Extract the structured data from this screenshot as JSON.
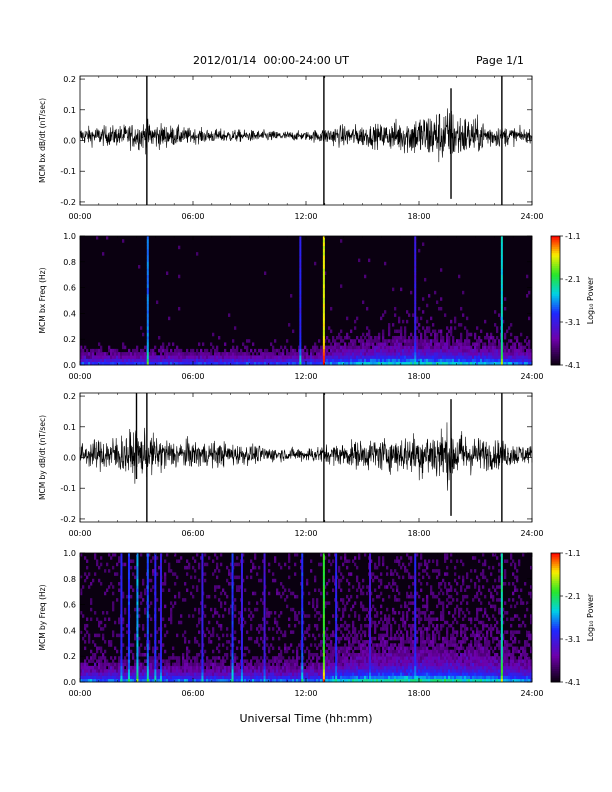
{
  "header": {
    "date_range": "2012/01/14  00:00-24:00 UT",
    "page": "Page 1/1"
  },
  "x_axis_label": "Universal Time (hh:mm)",
  "colors": {
    "trace": "#000000",
    "background": "#ffffff",
    "spectrogram_bg": "#0a0010"
  },
  "chart_data": [
    {
      "type": "line",
      "ylabel": "MCM bx dB/dt (nT/sec)",
      "x_ticks": [
        "00:00",
        "06:00",
        "12:00",
        "18:00",
        "24:00"
      ],
      "xlim_hours": [
        0,
        24
      ],
      "y_ticks": [
        "-0.2",
        "-0.1",
        "0.0",
        "0.1",
        "0.2"
      ],
      "ylim": [
        -0.21,
        0.21
      ],
      "baseline": 0.015,
      "envelope": [
        {
          "x": 0,
          "amp": 0.03
        },
        {
          "x": 2,
          "amp": 0.035
        },
        {
          "x": 3.5,
          "amp": 0.05
        },
        {
          "x": 6,
          "amp": 0.025
        },
        {
          "x": 9,
          "amp": 0.02
        },
        {
          "x": 12,
          "amp": 0.015
        },
        {
          "x": 13.5,
          "amp": 0.035
        },
        {
          "x": 16,
          "amp": 0.04
        },
        {
          "x": 19.5,
          "amp": 0.1
        },
        {
          "x": 20.5,
          "amp": 0.07
        },
        {
          "x": 22,
          "amp": 0.04
        },
        {
          "x": 24,
          "amp": 0.02
        }
      ],
      "spikes": [
        {
          "x": 3.55,
          "min": -0.21,
          "max": 0.21
        },
        {
          "x": 12.95,
          "min": -0.21,
          "max": 0.21
        },
        {
          "x": 22.4,
          "min": -0.21,
          "max": 0.21
        },
        {
          "x": 19.7,
          "min": -0.19,
          "max": 0.17
        }
      ]
    },
    {
      "type": "heatmap",
      "ylabel": "MCM bx Freq (Hz)",
      "x_ticks": [
        "00:00",
        "06:00",
        "12:00",
        "18:00",
        "24:00"
      ],
      "xlim_hours": [
        0,
        24
      ],
      "y_ticks": [
        "0.0",
        "0.2",
        "0.4",
        "0.6",
        "0.8",
        "1.0"
      ],
      "ylim": [
        0,
        1.0
      ],
      "colorbar": {
        "label": "Log₁₀ Power",
        "ticks": [
          "-1.1",
          "-2.1",
          "-3.1",
          "-4.1"
        ],
        "range": [
          -4.1,
          -1.1
        ]
      },
      "vertical_lines": [
        {
          "x": 3.6,
          "level": -2.7
        },
        {
          "x": 11.7,
          "level": -3.0
        },
        {
          "x": 12.95,
          "level": -1.6
        },
        {
          "x": 17.8,
          "level": -3.1
        },
        {
          "x": 22.4,
          "level": -2.4
        }
      ],
      "noise_level": -4.0
    },
    {
      "type": "line",
      "ylabel": "MCM by dB/dt (nT/sec)",
      "x_ticks": [
        "00:00",
        "06:00",
        "12:00",
        "18:00",
        "24:00"
      ],
      "xlim_hours": [
        0,
        24
      ],
      "y_ticks": [
        "-0.2",
        "-0.1",
        "0.0",
        "0.1",
        "0.2"
      ],
      "ylim": [
        -0.21,
        0.21
      ],
      "baseline": 0.01,
      "envelope": [
        {
          "x": 0,
          "amp": 0.035
        },
        {
          "x": 1.5,
          "amp": 0.06
        },
        {
          "x": 3,
          "amp": 0.08
        },
        {
          "x": 5,
          "amp": 0.05
        },
        {
          "x": 8,
          "amp": 0.04
        },
        {
          "x": 11,
          "amp": 0.02
        },
        {
          "x": 13,
          "amp": 0.03
        },
        {
          "x": 15,
          "amp": 0.05
        },
        {
          "x": 17,
          "amp": 0.06
        },
        {
          "x": 19.5,
          "amp": 0.1
        },
        {
          "x": 21,
          "amp": 0.06
        },
        {
          "x": 24,
          "amp": 0.03
        }
      ],
      "spikes": [
        {
          "x": 3.0,
          "min": -0.07,
          "max": 0.21
        },
        {
          "x": 3.55,
          "min": -0.21,
          "max": 0.21
        },
        {
          "x": 12.95,
          "min": -0.21,
          "max": 0.21
        },
        {
          "x": 22.4,
          "min": -0.21,
          "max": 0.21
        },
        {
          "x": 19.7,
          "min": -0.19,
          "max": 0.19
        }
      ]
    },
    {
      "type": "heatmap",
      "ylabel": "MCM by Freq (Hz)",
      "x_ticks": [
        "00:00",
        "06:00",
        "12:00",
        "18:00",
        "24:00"
      ],
      "xlim_hours": [
        0,
        24
      ],
      "y_ticks": [
        "0.0",
        "0.2",
        "0.4",
        "0.6",
        "0.8",
        "1.0"
      ],
      "ylim": [
        0,
        1.0
      ],
      "colorbar": {
        "label": "Log₁₀ Power",
        "ticks": [
          "-1.1",
          "-2.1",
          "-3.1",
          "-4.1"
        ],
        "range": [
          -4.1,
          -1.1
        ]
      },
      "vertical_lines": [
        {
          "x": 2.2,
          "level": -3.0
        },
        {
          "x": 2.6,
          "level": -2.9
        },
        {
          "x": 3.05,
          "level": -2.6
        },
        {
          "x": 3.6,
          "level": -2.8
        },
        {
          "x": 4.0,
          "level": -3.0
        },
        {
          "x": 4.3,
          "level": -3.1
        },
        {
          "x": 6.5,
          "level": -3.1
        },
        {
          "x": 8.1,
          "level": -2.9
        },
        {
          "x": 8.6,
          "level": -3.1
        },
        {
          "x": 9.8,
          "level": -3.2
        },
        {
          "x": 11.8,
          "level": -2.9
        },
        {
          "x": 12.95,
          "level": -2.0
        },
        {
          "x": 13.6,
          "level": -3.0
        },
        {
          "x": 15.4,
          "level": -3.2
        },
        {
          "x": 17.8,
          "level": -3.0
        },
        {
          "x": 22.4,
          "level": -2.3
        }
      ],
      "noise_level": -3.85
    }
  ]
}
